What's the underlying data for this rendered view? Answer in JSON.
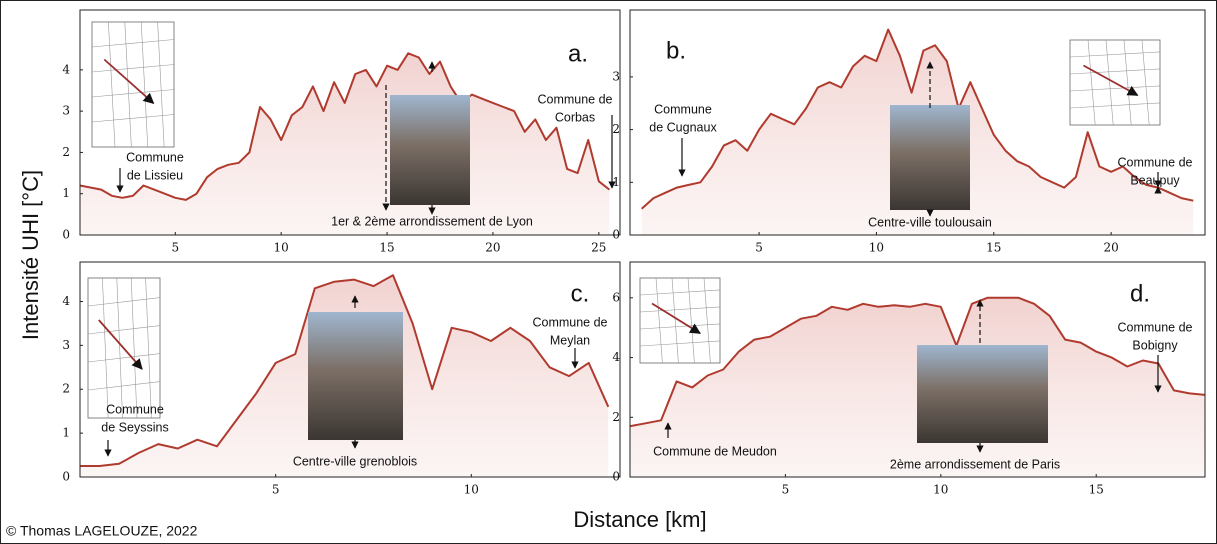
{
  "figure": {
    "ylabel": "Intensité UHI [°C]",
    "xlabel": "Distance [km]",
    "credit": "© Thomas LAGELOUZE, 2022"
  },
  "chart_data": [
    {
      "type": "line",
      "label": "a.",
      "color": "#b03a2e",
      "x": [
        0.5,
        1.5,
        2,
        2.5,
        3,
        3.5,
        4,
        4.5,
        5,
        5.5,
        6,
        6.5,
        7,
        7.5,
        8,
        8.5,
        9,
        9.5,
        10,
        10.5,
        11,
        11.5,
        12,
        12.5,
        13,
        13.5,
        14,
        14.5,
        15,
        15.5,
        16,
        16.5,
        17,
        17.5,
        18,
        18.5,
        19,
        19.5,
        20,
        20.5,
        21,
        21.5,
        22,
        22.5,
        23,
        23.5,
        24,
        24.5,
        25,
        25.5
      ],
      "values": [
        1.2,
        1.1,
        0.95,
        0.9,
        0.95,
        1.2,
        1.1,
        1.0,
        0.9,
        0.85,
        1.0,
        1.4,
        1.6,
        1.7,
        1.75,
        2.0,
        3.1,
        2.8,
        2.3,
        2.9,
        3.1,
        3.6,
        3.0,
        3.7,
        3.2,
        3.9,
        4.0,
        3.6,
        4.1,
        4.0,
        4.4,
        4.3,
        3.9,
        4.2,
        3.6,
        3.2,
        3.4,
        3.3,
        3.2,
        3.1,
        3.0,
        2.5,
        2.8,
        2.3,
        2.6,
        1.6,
        1.5,
        2.3,
        1.3,
        1.1
      ],
      "xlim": [
        0.5,
        26
      ],
      "ylim": [
        0,
        5.45
      ],
      "xticks": [
        5,
        10,
        15,
        20,
        25
      ],
      "yticks": [
        0,
        1,
        2,
        3,
        4
      ],
      "annotations": [
        {
          "lines": [
            "Commune",
            "de Lissieu"
          ]
        },
        {
          "lines": [
            "Commune de",
            "Corbas"
          ]
        },
        {
          "lines": [
            "1er & 2ème arrondissement de Lyon"
          ]
        }
      ]
    },
    {
      "type": "line",
      "label": "b.",
      "color": "#b03a2e",
      "x": [
        0,
        0.5,
        1,
        1.5,
        2,
        2.5,
        3,
        3.5,
        4,
        4.5,
        5,
        5.5,
        6,
        6.5,
        7,
        7.5,
        8,
        8.5,
        9,
        9.5,
        10,
        10.5,
        11,
        11.5,
        12,
        12.5,
        13,
        13.5,
        14,
        14.5,
        15,
        15.5,
        16,
        16.5,
        17,
        17.5,
        18,
        18.5,
        19,
        19.5,
        20,
        20.5,
        21,
        21.5,
        22,
        22.5,
        23,
        23.5
      ],
      "values": [
        0.5,
        0.7,
        0.8,
        0.9,
        0.95,
        1.0,
        1.3,
        1.7,
        1.8,
        1.6,
        2.0,
        2.3,
        2.2,
        2.1,
        2.4,
        2.8,
        2.9,
        2.8,
        3.2,
        3.4,
        3.3,
        3.9,
        3.4,
        2.7,
        3.5,
        3.6,
        3.3,
        2.4,
        2.9,
        2.4,
        1.9,
        1.6,
        1.4,
        1.3,
        1.1,
        1.0,
        0.9,
        1.1,
        1.95,
        1.3,
        1.2,
        1.3,
        1.1,
        0.95,
        0.9,
        0.8,
        0.7,
        0.65
      ],
      "xlim": [
        -0.5,
        24
      ],
      "ylim": [
        0,
        4.27
      ],
      "xticks": [
        5,
        10,
        15,
        20
      ],
      "yticks": [
        0,
        1,
        2,
        3
      ],
      "annotations": [
        {
          "lines": [
            "Commune",
            "de Cugnaux"
          ]
        },
        {
          "lines": [
            "Commune de",
            "Beaupuy"
          ]
        },
        {
          "lines": [
            "Centre-ville toulousain"
          ]
        }
      ]
    },
    {
      "type": "line",
      "label": "c.",
      "color": "#b03a2e",
      "x": [
        0,
        0.5,
        1,
        1.5,
        2,
        2.5,
        3,
        3.5,
        4,
        4.5,
        5,
        5.5,
        6,
        6.5,
        7,
        7.5,
        8,
        8.5,
        9,
        9.5,
        10,
        10.5,
        11,
        11.5,
        12,
        12.5,
        13,
        13.5
      ],
      "values": [
        0.25,
        0.25,
        0.3,
        0.55,
        0.75,
        0.65,
        0.85,
        0.7,
        1.3,
        1.9,
        2.6,
        2.8,
        4.3,
        4.45,
        4.5,
        4.35,
        4.6,
        3.5,
        2.0,
        3.4,
        3.3,
        3.1,
        3.4,
        3.1,
        2.5,
        2.3,
        2.6,
        1.6
      ],
      "xlim": [
        0,
        13.8
      ],
      "ylim": [
        0,
        4.9
      ],
      "xticks": [
        5,
        10
      ],
      "yticks": [
        0,
        1,
        2,
        3,
        4
      ],
      "annotations": [
        {
          "lines": [
            "Commune",
            "de Seyssins"
          ]
        },
        {
          "lines": [
            "Commune de",
            "Meylan"
          ]
        },
        {
          "lines": [
            "Centre-ville grenoblois"
          ]
        }
      ]
    },
    {
      "type": "line",
      "label": "d.",
      "color": "#b03a2e",
      "x": [
        0,
        0.5,
        1,
        1.5,
        2,
        2.5,
        3,
        3.5,
        4,
        4.5,
        5,
        5.5,
        6,
        6.5,
        7,
        7.5,
        8,
        8.5,
        9,
        9.5,
        10,
        10.5,
        11,
        11.5,
        12,
        12.5,
        13,
        13.5,
        14,
        14.5,
        15,
        15.5,
        16,
        16.5,
        17,
        17.5,
        18,
        18.5
      ],
      "values": [
        1.7,
        1.8,
        1.9,
        3.2,
        3.0,
        3.4,
        3.6,
        4.2,
        4.6,
        4.7,
        5.0,
        5.3,
        5.4,
        5.7,
        5.6,
        5.8,
        5.7,
        5.75,
        5.7,
        5.8,
        5.7,
        4.4,
        5.8,
        6.0,
        6.0,
        6.0,
        5.8,
        5.4,
        4.6,
        4.5,
        4.2,
        4.0,
        3.7,
        3.9,
        3.8,
        2.9,
        2.8,
        2.75
      ],
      "xlim": [
        0,
        18.5
      ],
      "ylim": [
        0,
        7.2
      ],
      "xticks": [
        5,
        10,
        15
      ],
      "yticks": [
        0,
        2,
        4,
        6
      ],
      "annotations": [
        {
          "lines": [
            "Commune de",
            "Bobigny"
          ]
        },
        {
          "lines": [
            "Commune de Meudon"
          ]
        },
        {
          "lines": [
            "2ème arrondissement de Paris"
          ]
        }
      ]
    }
  ]
}
